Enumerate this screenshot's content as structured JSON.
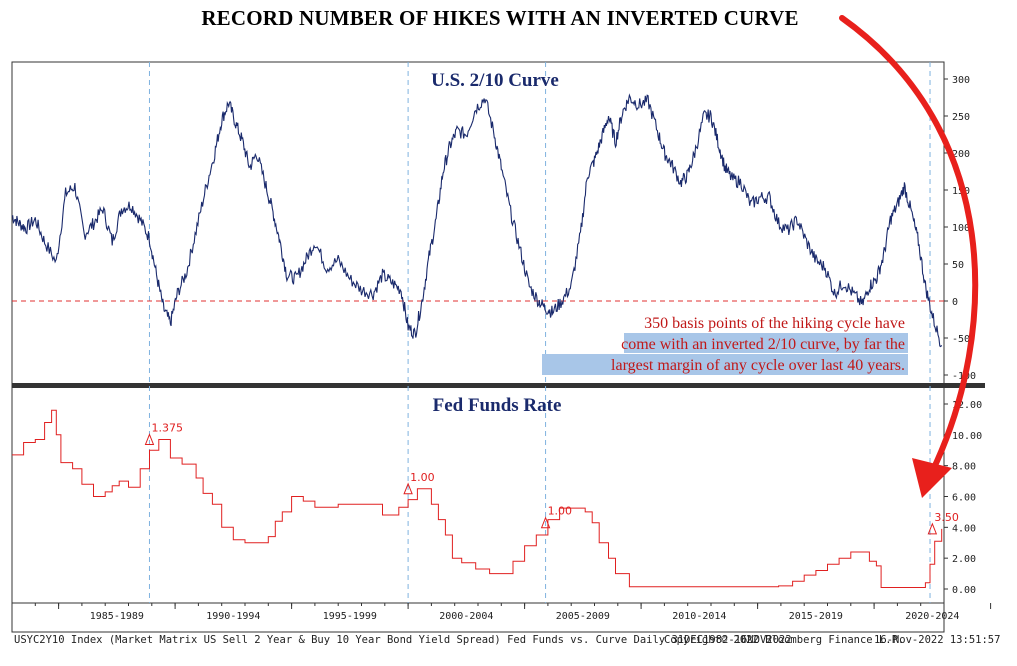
{
  "title": "RECORD NUMBER OF HIKES WITH AN INVERTED CURVE",
  "chart_data": [
    {
      "type": "line",
      "title": "U.S. 2/10 Curve",
      "ylim": [
        -100,
        300
      ],
      "yticks": [
        "300",
        "250",
        "200",
        "150",
        "100",
        "50",
        "0",
        "-50",
        "-100"
      ],
      "reference_line": 0,
      "annotation": "350 basis points of the hiking cycle have come with an inverted 2/10 curve, by far the largest margin of any cycle over last 40 years.",
      "annotation_lines": [
        "350 basis points of the hiking cycle have",
        "come with an inverted 2/10 curve, by far the",
        "largest margin of any cycle over last 40 years."
      ],
      "series": [
        {
          "x": [
            1983.0,
            1983.3,
            1983.6,
            1984.0,
            1984.4,
            1984.9,
            1985.3,
            1985.7,
            1986.1,
            1986.5,
            1986.9,
            1987.3,
            1987.7,
            1988.1,
            1988.5,
            1988.9,
            1989.2,
            1989.5,
            1989.8,
            1990.1,
            1990.5,
            1990.9,
            1991.3,
            1991.7,
            1992.0,
            1992.3,
            1992.6,
            1992.9,
            1993.2,
            1993.5,
            1993.9,
            1994.2,
            1994.5,
            1994.8,
            1995.2,
            1995.6,
            1996.0,
            1996.5,
            1997.0,
            1997.5,
            1998.0,
            1998.5,
            1998.9,
            1999.3,
            1999.7,
            2000.0,
            2000.3,
            2000.6,
            2000.9,
            2001.2,
            2001.5,
            2001.8,
            2002.1,
            2002.5,
            2002.9,
            2003.3,
            2003.7,
            2004.0,
            2004.4,
            2004.8,
            2005.2,
            2005.6,
            2005.9,
            2006.2,
            2006.6,
            2007.0,
            2007.4,
            2007.7,
            2008.0,
            2008.3,
            2008.6,
            2008.9,
            2009.2,
            2009.5,
            2009.9,
            2010.3,
            2010.7,
            2011.0,
            2011.3,
            2011.7,
            2012.0,
            2012.3,
            2012.7,
            2013.0,
            2013.3,
            2013.6,
            2013.9,
            2014.3,
            2014.7,
            2015.1,
            2015.5,
            2015.9,
            2016.3,
            2016.7,
            2017.1,
            2017.5,
            2017.9,
            2018.3,
            2018.7,
            2019.1,
            2019.5,
            2019.8,
            2020.1,
            2020.4,
            2020.7,
            2021.0,
            2021.3,
            2021.6,
            2021.9,
            2022.2,
            2022.5,
            2022.9
          ],
          "values": [
            115,
            105,
            98,
            110,
            80,
            52,
            145,
            155,
            90,
            105,
            125,
            80,
            125,
            130,
            110,
            85,
            35,
            -10,
            -30,
            10,
            40,
            95,
            150,
            200,
            245,
            268,
            240,
            215,
            180,
            200,
            155,
            120,
            80,
            35,
            30,
            55,
            80,
            45,
            55,
            30,
            15,
            10,
            35,
            25,
            15,
            -35,
            -45,
            0,
            60,
            110,
            175,
            210,
            230,
            225,
            260,
            275,
            225,
            180,
            120,
            70,
            20,
            0,
            -10,
            -15,
            0,
            20,
            90,
            170,
            190,
            220,
            250,
            215,
            255,
            275,
            265,
            270,
            230,
            200,
            185,
            160,
            170,
            200,
            250,
            250,
            215,
            180,
            165,
            160,
            130,
            140,
            140,
            105,
            95,
            110,
            80,
            55,
            45,
            10,
            25,
            10,
            -5,
            20,
            30,
            60,
            110,
            130,
            155,
            120,
            80,
            20,
            -20,
            -60
          ],
          "color": "#1a2a6c"
        }
      ]
    },
    {
      "type": "line",
      "title": "Fed Funds Rate",
      "ylim": [
        0,
        12
      ],
      "yticks": [
        "12.00",
        "10.00",
        "8.00",
        "6.00",
        "4.00",
        "2.00",
        "0.00"
      ],
      "xticks": [
        "1985-1989",
        "1990-1994",
        "1995-1999",
        "2000-2004",
        "2005-2009",
        "2010-2014",
        "2015-2019",
        "2020-2024"
      ],
      "hike_labels": [
        {
          "x": 1988.9,
          "y": 9.7,
          "label": "1.375"
        },
        {
          "x": 2000.0,
          "y": 6.5,
          "label": "1.00"
        },
        {
          "x": 2005.9,
          "y": 4.3,
          "label": "1.00"
        },
        {
          "x": 2022.5,
          "y": 3.9,
          "label": "3.50"
        }
      ],
      "series": [
        {
          "x": [
            1983.0,
            1983.5,
            1984.0,
            1984.4,
            1984.7,
            1984.9,
            1985.1,
            1985.6,
            1986.0,
            1986.5,
            1987.0,
            1987.3,
            1987.6,
            1988.0,
            1988.5,
            1988.9,
            1989.3,
            1989.8,
            1990.3,
            1990.9,
            1991.2,
            1991.6,
            1992.0,
            1992.5,
            1993.0,
            1993.5,
            1994.0,
            1994.3,
            1994.6,
            1995.0,
            1995.5,
            1996.0,
            1996.5,
            1997.0,
            1997.5,
            1998.0,
            1998.5,
            1998.9,
            1999.3,
            1999.6,
            2000.0,
            2000.4,
            2000.8,
            2001.0,
            2001.3,
            2001.6,
            2001.9,
            2002.3,
            2002.9,
            2003.5,
            2004.0,
            2004.5,
            2005.0,
            2005.5,
            2006.0,
            2006.5,
            2007.0,
            2007.6,
            2007.9,
            2008.2,
            2008.6,
            2008.9,
            2009.5,
            2010.5,
            2012.0,
            2014.0,
            2015.9,
            2016.5,
            2017.0,
            2017.5,
            2018.0,
            2018.5,
            2019.0,
            2019.5,
            2019.8,
            2020.1,
            2020.3,
            2021.0,
            2022.0,
            2022.2,
            2022.4,
            2022.6,
            2022.9
          ],
          "values": [
            8.7,
            9.5,
            9.7,
            10.8,
            11.6,
            10.0,
            8.2,
            7.8,
            6.8,
            6.0,
            6.3,
            6.7,
            7.0,
            6.6,
            7.8,
            9.0,
            9.7,
            8.5,
            8.1,
            7.2,
            6.2,
            5.5,
            4.0,
            3.2,
            3.0,
            3.0,
            3.4,
            4.4,
            5.0,
            6.0,
            5.7,
            5.3,
            5.3,
            5.5,
            5.5,
            5.5,
            5.5,
            4.8,
            4.8,
            5.3,
            5.8,
            6.5,
            6.5,
            5.5,
            4.5,
            3.5,
            2.0,
            1.7,
            1.3,
            1.0,
            1.0,
            1.8,
            2.8,
            3.5,
            4.5,
            5.25,
            5.25,
            5.0,
            4.3,
            3.0,
            2.0,
            1.0,
            0.15,
            0.15,
            0.15,
            0.15,
            0.2,
            0.5,
            0.9,
            1.2,
            1.6,
            2.0,
            2.4,
            2.4,
            1.8,
            1.5,
            0.1,
            0.1,
            0.1,
            0.4,
            1.6,
            3.1,
            3.9
          ],
          "color": "#e02020"
        }
      ]
    }
  ],
  "footer": {
    "left": "USYC2Y10 Index (Market Matrix US Sell 2 Year & Buy 10 Year Bond Yield Spread) Fed Funds vs. Curve  Daily 31DEC1982-16NOV2022",
    "middle": "Copyright© 2022 Bloomberg Finance L.P.",
    "right": "16-Nov-2022 13:51:57"
  },
  "colors": {
    "curve": "#1a2a6c",
    "fed": "#e02020",
    "arrow": "#e8201c",
    "panel_title": "#1a2a6c",
    "annotation_text": "#c01818",
    "highlight": "#a8c6e8"
  }
}
